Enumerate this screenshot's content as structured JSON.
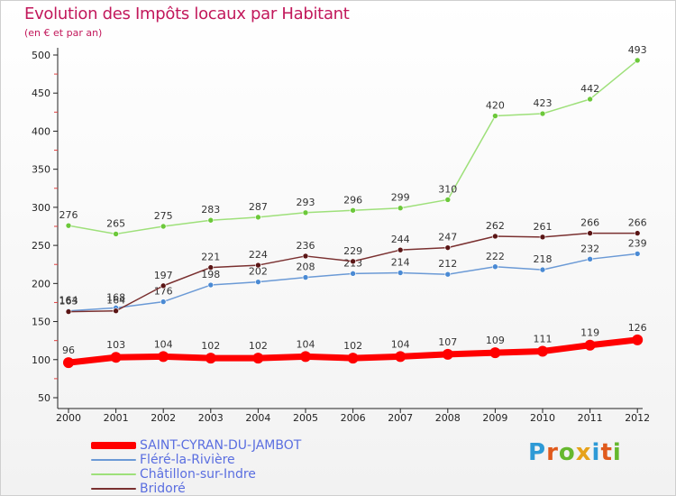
{
  "title": "Evolution des Impôts locaux par Habitant",
  "subtitle": "(en € et par an)",
  "brand": {
    "text": "Proxiti",
    "colors": [
      "#2e9ad6",
      "#e05a1c",
      "#66b82e",
      "#e6a21a",
      "#2e9ad6",
      "#e05a1c",
      "#66b82e"
    ]
  },
  "chart_data": {
    "type": "line",
    "x": [
      "2000",
      "2001",
      "2002",
      "2003",
      "2004",
      "2005",
      "2006",
      "2007",
      "2008",
      "2009",
      "2010",
      "2011",
      "2012"
    ],
    "yticks": [
      50,
      100,
      150,
      200,
      250,
      300,
      350,
      400,
      450,
      500
    ],
    "ylim": [
      40,
      515
    ],
    "grid": false,
    "legend_position": "bottom-left",
    "series": [
      {
        "name": "SAINT-CYRAN-DU-JAMBOT",
        "color": "#ff0000",
        "marker_color": "#ff0000",
        "thick": true,
        "values": [
          96,
          103,
          104,
          102,
          102,
          104,
          102,
          104,
          107,
          109,
          111,
          119,
          126
        ]
      },
      {
        "name": "Fléré-la-Rivière",
        "color": "#6b9ad6",
        "marker_color": "#4a8ad4",
        "thick": false,
        "values": [
          164,
          168,
          176,
          198,
          202,
          208,
          213,
          214,
          212,
          222,
          218,
          232,
          239
        ]
      },
      {
        "name": "Châtillon-sur-Indre",
        "color": "#9ee07a",
        "marker_color": "#6cc83a",
        "thick": false,
        "values": [
          276,
          265,
          275,
          283,
          287,
          293,
          296,
          299,
          310,
          420,
          423,
          442,
          493
        ]
      },
      {
        "name": "Bridoré",
        "color": "#7a3030",
        "marker_color": "#5a1515",
        "thick": false,
        "values": [
          163,
          164,
          197,
          221,
          224,
          236,
          229,
          244,
          247,
          262,
          261,
          266,
          266
        ]
      }
    ]
  }
}
